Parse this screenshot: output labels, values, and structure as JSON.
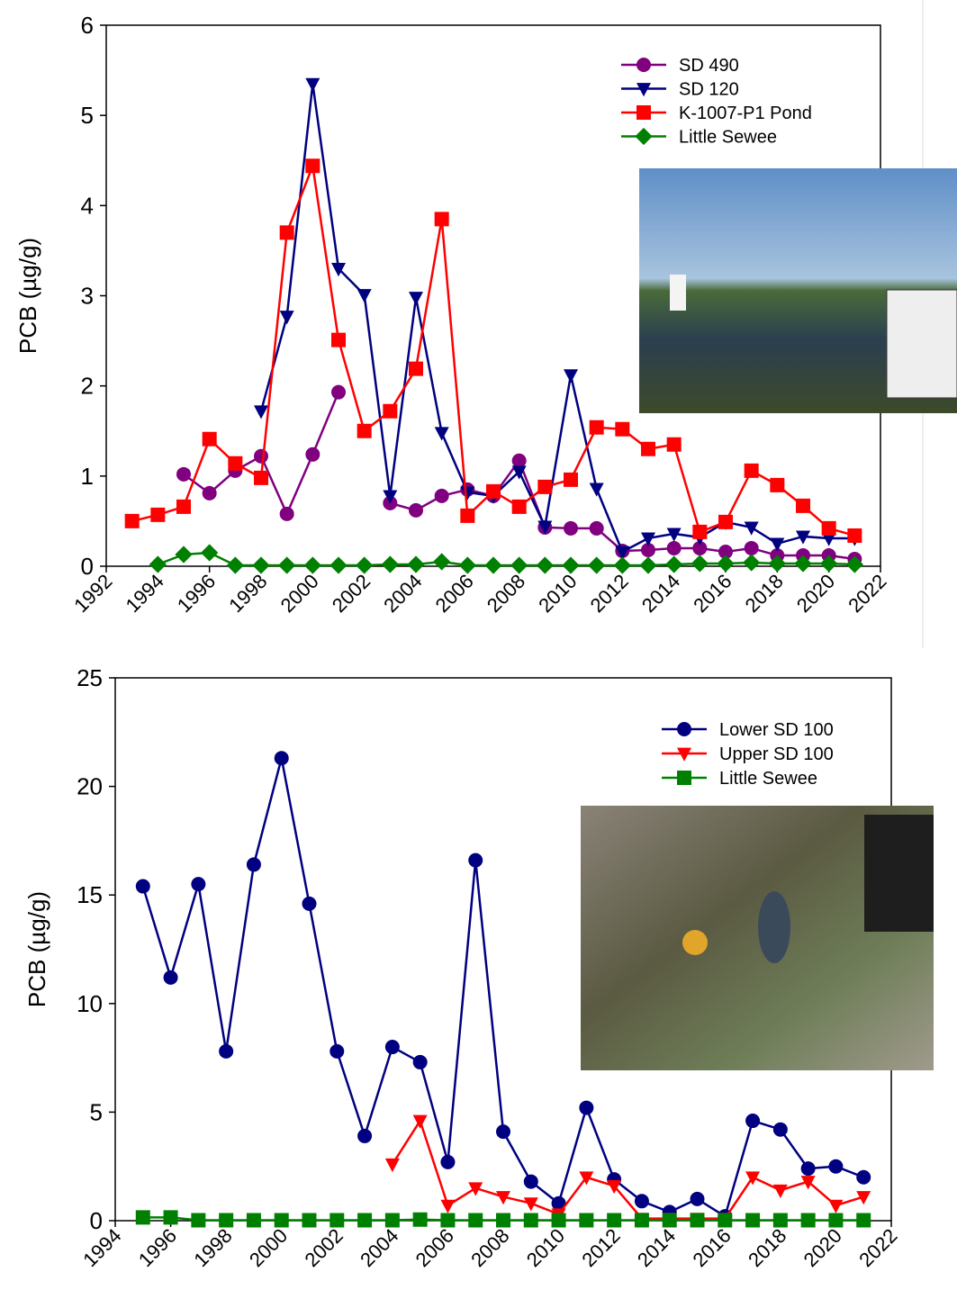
{
  "chart_data": [
    {
      "type": "line",
      "ylabel": "PCB (µg/g)",
      "legend": "upper right",
      "xlim": [
        1992,
        2022
      ],
      "xticks": [
        1992,
        1994,
        1996,
        1998,
        2000,
        2002,
        2004,
        2006,
        2008,
        2010,
        2012,
        2014,
        2016,
        2018,
        2020,
        2022
      ],
      "ylim": [
        0,
        6
      ],
      "yticks": [
        0,
        1,
        2,
        3,
        4,
        5,
        6
      ],
      "x": [
        1993,
        1994,
        1995,
        1996,
        1997,
        1998,
        1999,
        2000,
        2001,
        2002,
        2003,
        2004,
        2005,
        2006,
        2007,
        2008,
        2009,
        2010,
        2011,
        2012,
        2013,
        2014,
        2015,
        2016,
        2017,
        2018,
        2019,
        2020,
        2021
      ],
      "series": [
        {
          "name": "SD 490",
          "color": "#800080",
          "marker": "circle",
          "values": [
            null,
            null,
            1.02,
            0.81,
            1.06,
            1.22,
            0.58,
            1.24,
            1.93,
            null,
            0.7,
            0.62,
            0.78,
            0.85,
            0.78,
            1.17,
            0.43,
            0.42,
            0.42,
            0.17,
            0.18,
            0.2,
            0.2,
            0.16,
            0.2,
            0.12,
            0.12,
            0.12,
            0.08
          ]
        },
        {
          "name": "SD 120",
          "color": "#000080",
          "marker": "triangle-down",
          "values": [
            null,
            null,
            null,
            null,
            null,
            1.72,
            2.77,
            5.35,
            3.3,
            3.01,
            0.78,
            2.98,
            1.48,
            0.82,
            0.78,
            1.05,
            0.44,
            2.12,
            0.86,
            0.16,
            0.31,
            0.36,
            0.32,
            0.49,
            0.43,
            0.25,
            0.33,
            0.31,
            0.31
          ]
        },
        {
          "name": "K-1007-P1 Pond",
          "color": "#ff0000",
          "marker": "square",
          "values": [
            0.5,
            0.57,
            0.66,
            1.41,
            1.14,
            0.98,
            3.7,
            4.44,
            2.51,
            1.5,
            1.72,
            2.19,
            3.85,
            0.56,
            0.83,
            0.66,
            0.88,
            0.96,
            1.54,
            1.52,
            1.3,
            1.35,
            0.38,
            0.49,
            1.06,
            0.9,
            0.67,
            0.42,
            0.34
          ]
        },
        {
          "name": "Little Sewee",
          "color": "#008000",
          "marker": "diamond",
          "values": [
            null,
            0.02,
            0.13,
            0.15,
            0.01,
            0.01,
            0.01,
            0.01,
            0.01,
            0.01,
            0.02,
            0.02,
            0.05,
            0.01,
            0.01,
            0.01,
            0.01,
            0.01,
            0.01,
            0.01,
            0.01,
            0.02,
            0.03,
            0.03,
            0.04,
            0.03,
            0.03,
            0.03,
            0.02
          ]
        }
      ]
    },
    {
      "type": "line",
      "ylabel": "PCB (µg/g)",
      "legend": "upper right",
      "xlim": [
        1994,
        2022
      ],
      "xticks": [
        1994,
        1996,
        1998,
        2000,
        2002,
        2004,
        2006,
        2008,
        2010,
        2012,
        2014,
        2016,
        2018,
        2020,
        2022
      ],
      "ylim": [
        0,
        25
      ],
      "yticks": [
        0,
        5,
        10,
        15,
        20,
        25
      ],
      "x": [
        1995,
        1996,
        1997,
        1998,
        1999,
        2000,
        2001,
        2002,
        2003,
        2004,
        2005,
        2006,
        2007,
        2008,
        2009,
        2010,
        2011,
        2012,
        2013,
        2014,
        2015,
        2016,
        2017,
        2018,
        2019,
        2020,
        2021
      ],
      "series": [
        {
          "name": "Lower SD 100",
          "color": "#000080",
          "marker": "circle",
          "values": [
            15.4,
            11.2,
            15.5,
            7.8,
            16.4,
            21.3,
            14.6,
            7.8,
            3.9,
            8.0,
            7.3,
            2.7,
            16.6,
            4.1,
            1.8,
            0.8,
            5.2,
            1.9,
            0.9,
            0.4,
            1.0,
            0.2,
            4.6,
            4.2,
            2.4,
            2.5,
            2.0
          ]
        },
        {
          "name": "Upper SD 100",
          "color": "#ff0000",
          "marker": "triangle-down",
          "values": [
            null,
            null,
            null,
            null,
            null,
            null,
            null,
            null,
            null,
            2.6,
            4.6,
            0.7,
            1.5,
            1.1,
            0.8,
            0.3,
            2.0,
            1.6,
            0.1,
            0.1,
            0.1,
            0.1,
            2.0,
            1.4,
            1.8,
            0.7,
            1.1
          ]
        },
        {
          "name": "Little Sewee",
          "color": "#008000",
          "marker": "square",
          "values": [
            0.15,
            0.15,
            0.02,
            0.02,
            0.02,
            0.02,
            0.02,
            0.02,
            0.02,
            0.02,
            0.05,
            0.02,
            0.02,
            0.02,
            0.02,
            0.02,
            0.02,
            0.02,
            0.02,
            0.02,
            0.02,
            0.02,
            0.02,
            0.02,
            0.02,
            0.02,
            0.02
          ]
        }
      ]
    }
  ]
}
